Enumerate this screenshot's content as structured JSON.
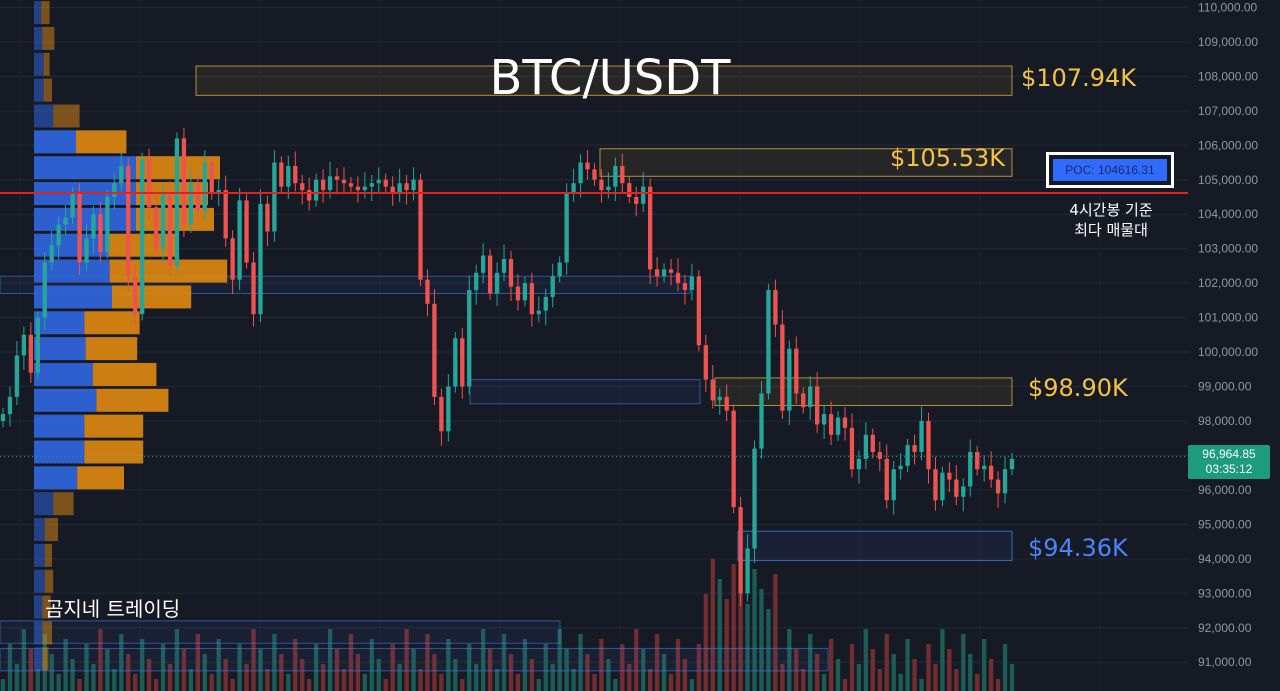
{
  "chart_data": {
    "type": "candlestick",
    "title": "BTC/USDT",
    "y_axis": {
      "ticks": [
        "110,000.00",
        "109,000.00",
        "108,000.00",
        "107,000.00",
        "106,000.00",
        "105,000.00",
        "104,000.00",
        "103,000.00",
        "102,000.00",
        "101,000.00",
        "100,000.00",
        "99,000.00",
        "98,000.00",
        "97,000.00",
        "96,000.00",
        "95,000.00",
        "94,000.00",
        "93,000.00",
        "92,000.00",
        "91,000.00"
      ],
      "tick_values": [
        110000,
        109000,
        108000,
        107000,
        106000,
        105000,
        104000,
        103000,
        102000,
        101000,
        100000,
        99000,
        98000,
        97000,
        96000,
        95000,
        94000,
        93000,
        92000,
        91000
      ],
      "range": [
        90600,
        110100
      ]
    },
    "last_price": {
      "value": "96,964.85",
      "countdown": "03:35:12",
      "price": 96964.85
    },
    "poc": {
      "label": "POC: 104616.31",
      "price": 104616.31,
      "note_line1": "4시간봉 기준",
      "note_line2": "최다 매물대"
    },
    "levels": [
      {
        "label": "$107.94K",
        "price_top": 108300,
        "price_bottom": 107450,
        "color": "#f5c242"
      },
      {
        "label": "$105.53K",
        "price_top": 105900,
        "price_bottom": 105100,
        "color": "#f5c242"
      },
      {
        "label": "$98.90K",
        "price_top": 99250,
        "price_bottom": 98450,
        "color": "#f5c242"
      },
      {
        "label": "$94.36K",
        "price_top": 94800,
        "price_bottom": 93950,
        "color": "#4a84ff"
      }
    ],
    "candles_close": [
      98200,
      98700,
      99900,
      100500,
      99400,
      101000,
      102600,
      103100,
      103700,
      103900,
      104600,
      102600,
      103300,
      104000,
      102900,
      104500,
      104900,
      105400,
      102200,
      101100,
      105600,
      104200,
      103000,
      104600,
      102500,
      106200,
      103700,
      104900,
      104100,
      105500,
      104600,
      104700,
      103300,
      102100,
      104400,
      102600,
      101100,
      104300,
      103500,
      105500,
      104800,
      105400,
      104900,
      104700,
      104400,
      105000,
      104700,
      105100,
      105000,
      104900,
      104800,
      104700,
      104800,
      104900,
      105000,
      104800,
      104600,
      104900,
      104700,
      105000,
      102100,
      101400,
      98700,
      97700,
      99000,
      100400,
      99000,
      101800,
      102300,
      102800,
      101700,
      102300,
      102700,
      101900,
      101500,
      102000,
      101100,
      101200,
      101600,
      102200,
      102600,
      104600,
      104900,
      105500,
      105300,
      105000,
      104700,
      104800,
      105400,
      104900,
      104500,
      104300,
      104800,
      102400,
      102200,
      102400,
      102300,
      102000,
      101800,
      102200,
      100200,
      99200,
      98600,
      98700,
      98300,
      95500,
      93000,
      94300,
      97200,
      98800,
      101800,
      100800,
      98300,
      100100,
      98800,
      98400,
      99000,
      97900,
      98200,
      97600,
      98100,
      97800,
      96600,
      96900,
      97600,
      97100,
      96900,
      95700,
      96600,
      96700,
      97300,
      97100,
      98000,
      96600,
      95700,
      96500,
      96300,
      95800,
      96100,
      97100,
      96600,
      96700,
      96300,
      95900,
      96600,
      96900
    ],
    "volume_profile": [
      {
        "price": 109850,
        "buy": 12,
        "sell": 14
      },
      {
        "price": 109100,
        "buy": 14,
        "sell": 20
      },
      {
        "price": 108350,
        "buy": 16,
        "sell": 10
      },
      {
        "price": 107600,
        "buy": 16,
        "sell": 14
      },
      {
        "price": 106850,
        "buy": 32,
        "sell": 44
      },
      {
        "price": 106100,
        "buy": 70,
        "sell": 84
      },
      {
        "price": 105350,
        "buy": 170,
        "sell": 140
      },
      {
        "price": 104600,
        "buy": 170,
        "sell": 120
      },
      {
        "price": 103850,
        "buy": 170,
        "sell": 130
      },
      {
        "price": 103100,
        "buy": 124,
        "sell": 112
      },
      {
        "price": 102350,
        "buy": 126,
        "sell": 196
      },
      {
        "price": 101600,
        "buy": 130,
        "sell": 132
      },
      {
        "price": 100850,
        "buy": 84,
        "sell": 92
      },
      {
        "price": 100100,
        "buy": 86,
        "sell": 86
      },
      {
        "price": 99350,
        "buy": 98,
        "sell": 106
      },
      {
        "price": 98600,
        "buy": 104,
        "sell": 120
      },
      {
        "price": 97850,
        "buy": 84,
        "sell": 98
      },
      {
        "price": 97100,
        "buy": 84,
        "sell": 98
      },
      {
        "price": 96350,
        "buy": 72,
        "sell": 78
      },
      {
        "price": 95600,
        "buy": 32,
        "sell": 34
      },
      {
        "price": 94850,
        "buy": 18,
        "sell": 22
      },
      {
        "price": 94100,
        "buy": 18,
        "sell": 12
      },
      {
        "price": 93350,
        "buy": 18,
        "sell": 14
      },
      {
        "price": 92600,
        "buy": 14,
        "sell": 14
      },
      {
        "price": 91850,
        "buy": 14,
        "sell": 16
      },
      {
        "price": 91100,
        "buy": 14,
        "sell": 10
      }
    ],
    "colors": {
      "up": "#26a69a",
      "down": "#ef5350",
      "buy": "#2f63d8",
      "sell": "#e08a12",
      "poc_line": "#e02424",
      "level": "#f5c242",
      "support": "#4a84ff"
    }
  },
  "brand": "곰지네 트레이딩"
}
